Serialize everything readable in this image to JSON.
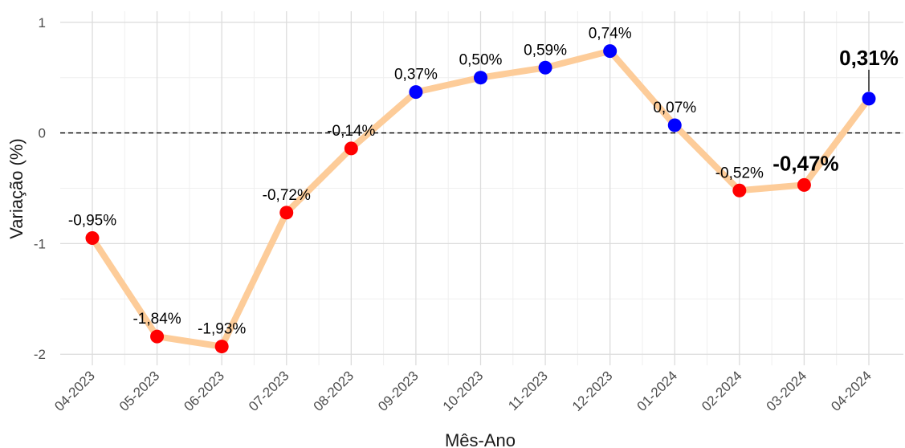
{
  "chart_data": {
    "type": "line",
    "title": "",
    "xlabel": "Mês-Ano",
    "ylabel": "Variação (%)",
    "ylim": [
      -2.1,
      1.1
    ],
    "yticks": [
      1,
      0,
      -1,
      -2
    ],
    "ytick_labels": [
      "1",
      "0",
      "-1",
      "-2"
    ],
    "grid": true,
    "reference_line": {
      "y": 0,
      "style": "dashed"
    },
    "categories": [
      "04-2023",
      "05-2023",
      "06-2023",
      "07-2023",
      "08-2023",
      "09-2023",
      "10-2023",
      "11-2023",
      "12-2023",
      "01-2024",
      "02-2024",
      "03-2024",
      "04-2024"
    ],
    "values": [
      -0.95,
      -1.84,
      -1.93,
      -0.72,
      -0.14,
      0.37,
      0.5,
      0.59,
      0.74,
      0.07,
      -0.52,
      -0.47,
      0.31
    ],
    "data_labels": [
      "-0,95%",
      "-1,84%",
      "-1,93%",
      "-0,72%",
      "-0,14%",
      "0,37%",
      "0,50%",
      "0,59%",
      "0,74%",
      "0,07%",
      "-0,52%",
      "-0,47%",
      "0,31%"
    ],
    "highlighted_labels": [
      "03-2024",
      "04-2024"
    ],
    "colors": {
      "line": "#fdcc99",
      "positive": "#0000ff",
      "negative": "#ff0000",
      "grid": "#dcdcdc",
      "grid_minor": "#efefef"
    }
  }
}
